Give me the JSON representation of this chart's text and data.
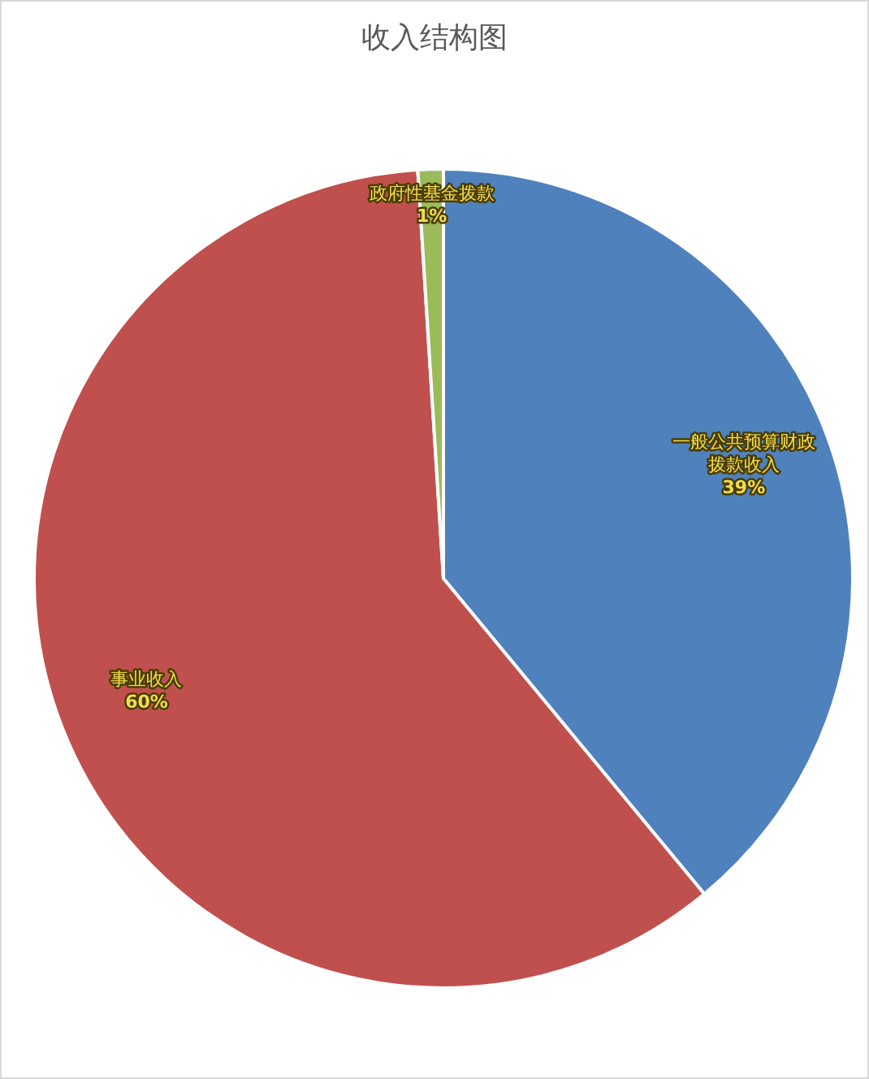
{
  "chart_data": {
    "type": "pie",
    "title": "收入结构图",
    "categories": [
      "一般公共预算财政拨款收入",
      "事业收入",
      "政府性基金拨款"
    ],
    "values": [
      39,
      60,
      1
    ],
    "value_labels": [
      "39%",
      "60%",
      "1%"
    ],
    "colors": [
      "#4f81bd",
      "#c0504d",
      "#9bbb59"
    ]
  }
}
